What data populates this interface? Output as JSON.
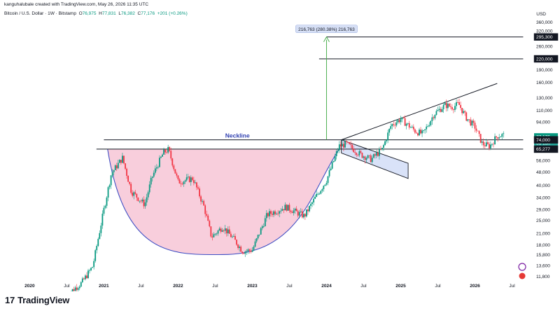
{
  "header": {
    "author_line": "kanguhalubale created with TradingView.com, May 26, 2026 11:35 UTC",
    "symbol": "Bitcoin / U.S. Dollar · 1W · Bitstamp",
    "open_label": "O",
    "open": "76,975",
    "high_label": "H",
    "high": "77,831",
    "low_label": "L",
    "low": "76,382",
    "close_label": "C",
    "close": "77,176",
    "change": "+201 (+0.26%)"
  },
  "footer": {
    "brand": "TradingView",
    "brand_mark": "17"
  },
  "colors": {
    "up": "#089981",
    "down": "#f23645",
    "cup_fill": "#f7c6d6",
    "cup_curve": "#3f4fc4",
    "flag_fill": "#c9d6f5",
    "arrow": "#4caf50",
    "neckline_text": "#2f3fb0"
  },
  "chart_data": {
    "type": "candlestick",
    "title": "",
    "currency": "USD",
    "y_scale": "log",
    "y_ticks": [
      "360,000",
      "320,000",
      "295,300",
      "260,000",
      "220,000",
      "190,000",
      "160,000",
      "130,000",
      "110,000",
      "94,000",
      "77,176",
      "74,000",
      "65,277",
      "56,000",
      "48,000",
      "40,000",
      "34,000",
      "29,000",
      "25,000",
      "21,000",
      "18,000",
      "15,800",
      "13,600",
      "11,800"
    ],
    "y_tick_values": [
      360000,
      320000,
      295300,
      260000,
      220000,
      190000,
      160000,
      130000,
      110000,
      94000,
      77176,
      74000,
      65277,
      56000,
      48000,
      40000,
      34000,
      29000,
      25000,
      21000,
      18000,
      15800,
      13600,
      11800
    ],
    "x_ticks": [
      {
        "label": "2020",
        "t": 2020.0,
        "year": true
      },
      {
        "label": "Jul",
        "t": 2020.5
      },
      {
        "label": "2021",
        "t": 2021.0,
        "year": true
      },
      {
        "label": "Jul",
        "t": 2021.5
      },
      {
        "label": "2022",
        "t": 2022.0,
        "year": true
      },
      {
        "label": "Jul",
        "t": 2022.5
      },
      {
        "label": "2023",
        "t": 2023.0,
        "year": true
      },
      {
        "label": "Jul",
        "t": 2023.5
      },
      {
        "label": "2024",
        "t": 2024.0,
        "year": true
      },
      {
        "label": "Jul",
        "t": 2024.5
      },
      {
        "label": "2025",
        "t": 2025.0,
        "year": true
      },
      {
        "label": "Jul",
        "t": 2025.5
      },
      {
        "label": "2026",
        "t": 2026.0,
        "year": true
      },
      {
        "label": "Jul",
        "t": 2026.5
      }
    ],
    "price_path": [
      [
        2020.5,
        9200
      ],
      [
        2020.7,
        10800
      ],
      [
        2020.85,
        13500
      ],
      [
        2021.0,
        29000
      ],
      [
        2021.1,
        47000
      ],
      [
        2021.25,
        58000
      ],
      [
        2021.37,
        37000
      ],
      [
        2021.55,
        31000
      ],
      [
        2021.65,
        45000
      ],
      [
        2021.8,
        62000
      ],
      [
        2021.87,
        65000
      ],
      [
        2022.0,
        42000
      ],
      [
        2022.2,
        44000
      ],
      [
        2022.35,
        30000
      ],
      [
        2022.45,
        20000
      ],
      [
        2022.6,
        23000
      ],
      [
        2022.75,
        19500
      ],
      [
        2022.87,
        16500
      ],
      [
        2023.0,
        16800
      ],
      [
        2023.2,
        27000
      ],
      [
        2023.45,
        30000
      ],
      [
        2023.7,
        26500
      ],
      [
        2023.85,
        34000
      ],
      [
        2024.0,
        43000
      ],
      [
        2024.17,
        68000
      ],
      [
        2024.27,
        70000
      ],
      [
        2024.45,
        61000
      ],
      [
        2024.6,
        57000
      ],
      [
        2024.75,
        65000
      ],
      [
        2024.87,
        90000
      ],
      [
        2025.0,
        98000
      ],
      [
        2025.2,
        83000
      ],
      [
        2025.3,
        80000
      ],
      [
        2025.45,
        105000
      ],
      [
        2025.6,
        118000
      ],
      [
        2025.7,
        115000
      ],
      [
        2025.78,
        120000
      ],
      [
        2025.88,
        100000
      ],
      [
        2026.0,
        88000
      ],
      [
        2026.1,
        70000
      ],
      [
        2026.2,
        68000
      ],
      [
        2026.3,
        78000
      ],
      [
        2026.38,
        79000
      ],
      [
        2026.4,
        77176
      ]
    ],
    "annotations": {
      "neckline_label": "Neckline",
      "measure_label": "216,763 (280.38%) 216,763",
      "price_tags": [
        {
          "label": "295,300",
          "value": 295300,
          "color": "#131722"
        },
        {
          "label": "220,000",
          "value": 220000,
          "color": "#131722"
        },
        {
          "label": "77,176",
          "value": 77176,
          "color": "#089981",
          "sub": "5d 13h"
        },
        {
          "label": "74,000",
          "value": 74000,
          "color": "#131722"
        },
        {
          "label": "65,277",
          "value": 65277,
          "color": "#131722"
        }
      ],
      "levels": [
        {
          "value": 295300,
          "t0": 2024.0,
          "t1": 2026.65
        },
        {
          "value": 220000,
          "t0": 2023.9,
          "t1": 2026.65
        },
        {
          "value": 74000,
          "t0": 2021.0,
          "t1": 2026.65
        },
        {
          "value": 65277,
          "t0": 2020.9,
          "t1": 2026.65
        }
      ],
      "cup": {
        "t0": 2021.05,
        "t1": 2024.17,
        "bottom_t": 2022.6,
        "bottom_value": 15800,
        "rim_value": 65277
      },
      "flag": [
        [
          2024.2,
          74000
        ],
        [
          2025.1,
          54000
        ],
        [
          2025.1,
          44000
        ],
        [
          2024.2,
          62000
        ]
      ],
      "channel": {
        "upper": [
          [
            2024.2,
            74000
          ],
          [
            2026.3,
            158000
          ]
        ],
        "lower": [
          [
            2024.2,
            74000
          ],
          [
            2026.3,
            74000
          ]
        ]
      },
      "arrow": {
        "t": 2024.0,
        "from": 74000,
        "to": 295300
      }
    }
  }
}
